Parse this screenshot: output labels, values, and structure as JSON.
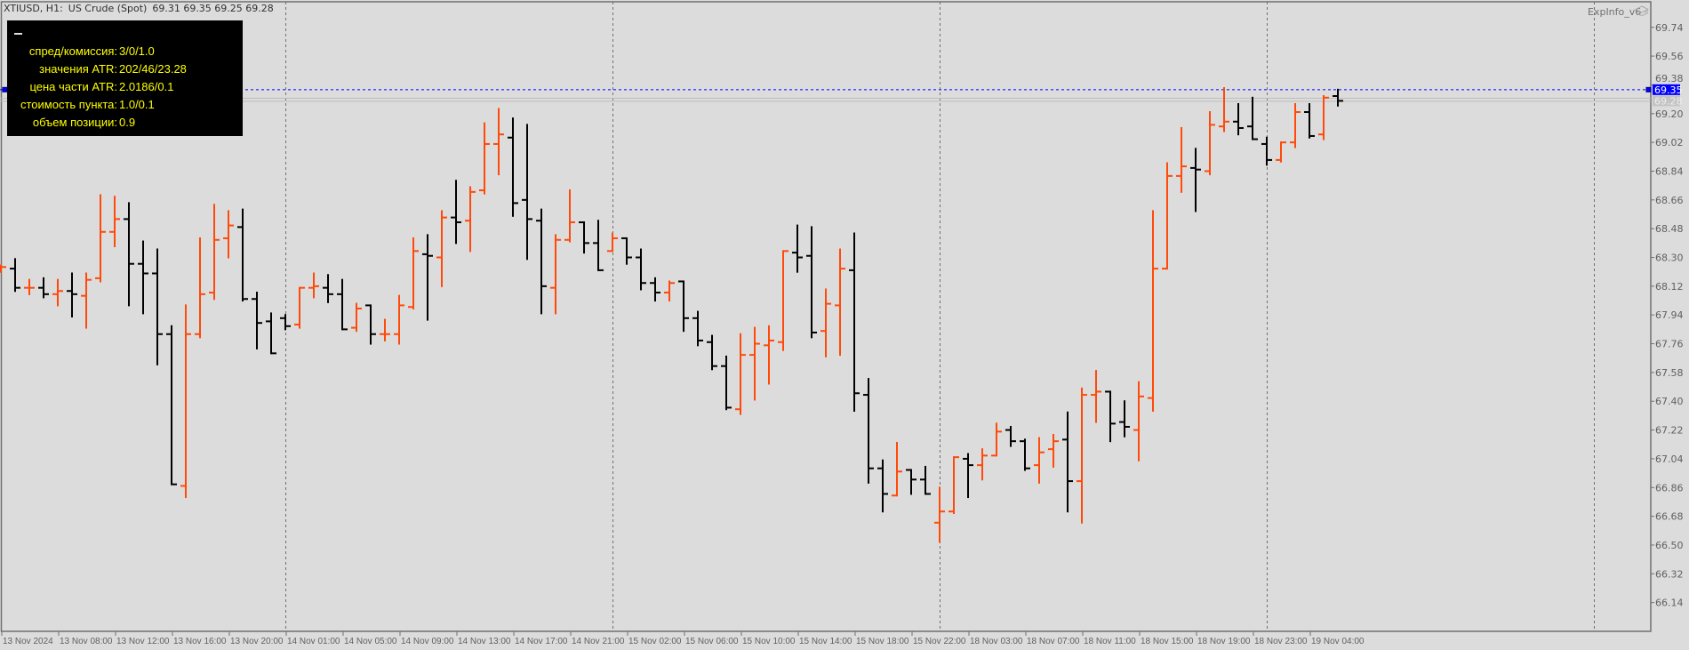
{
  "header": {
    "symbol": "XTIUSD, H1:",
    "description": "US Crude (Spot)",
    "ohlc": "69.31 69.35 69.25 69.28"
  },
  "info_panel": {
    "rows": [
      {
        "label": "спред/комиссия:",
        "value": "3/0/1.0"
      },
      {
        "label": "значения ATR:",
        "value": "202/46/23.28"
      },
      {
        "label": "цена части ATR:",
        "value": "2.0186/0.1"
      },
      {
        "label": "стоимость пункта:",
        "value": "1.0/0.1"
      },
      {
        "label": "объем позиции:",
        "value": "0.9"
      }
    ]
  },
  "expert": {
    "name": "ExpInfo_v6",
    "icon": "graduation-cap-icon"
  },
  "price_labels": {
    "ask": "69.35",
    "bid": "69.28"
  },
  "colors": {
    "background": "#dcdcdc",
    "bar_up": "#ff4a0a",
    "bar_down": "#000000",
    "ask_line": "#0000ff",
    "info_text": "#ffff00"
  },
  "chart_data": {
    "type": "ohlc",
    "timeframe": "H1",
    "ylim": [
      65.96,
      69.9
    ],
    "grid": false,
    "y_ticks": [
      "69.74",
      "69.56",
      "69.38",
      "69.20",
      "69.02",
      "68.84",
      "68.66",
      "68.48",
      "68.30",
      "68.12",
      "67.94",
      "67.76",
      "67.58",
      "67.40",
      "67.22",
      "67.04",
      "66.86",
      "66.68",
      "66.50",
      "66.32",
      "66.14"
    ],
    "x_labels": [
      "13 Nov 2024",
      "13 Nov 08:00",
      "13 Nov 12:00",
      "13 Nov 16:00",
      "13 Nov 20:00",
      "14 Nov 01:00",
      "14 Nov 05:00",
      "14 Nov 09:00",
      "14 Nov 13:00",
      "14 Nov 17:00",
      "14 Nov 21:00",
      "15 Nov 02:00",
      "15 Nov 06:00",
      "15 Nov 10:00",
      "15 Nov 14:00",
      "15 Nov 18:00",
      "15 Nov 22:00",
      "18 Nov 03:00",
      "18 Nov 07:00",
      "18 Nov 11:00",
      "18 Nov 15:00",
      "18 Nov 19:00",
      "18 Nov 23:00",
      "19 Nov 04:00"
    ],
    "bars": [
      [
        68.22,
        68.25,
        68.21,
        68.24
      ],
      [
        68.23,
        68.29,
        68.09,
        68.11
      ],
      [
        68.11,
        68.16,
        68.07,
        68.11
      ],
      [
        68.11,
        68.17,
        68.05,
        68.07
      ],
      [
        68.07,
        68.16,
        68.0,
        68.09
      ],
      [
        68.09,
        68.2,
        67.93,
        68.07
      ],
      [
        68.06,
        68.2,
        67.86,
        68.16
      ],
      [
        68.17,
        68.69,
        68.15,
        68.46
      ],
      [
        68.46,
        68.68,
        68.37,
        68.54
      ],
      [
        68.54,
        68.64,
        68.0,
        68.26
      ],
      [
        68.26,
        68.4,
        67.95,
        68.2
      ],
      [
        68.2,
        68.35,
        67.63,
        67.82
      ],
      [
        67.82,
        67.87,
        66.88,
        66.88
      ],
      [
        66.87,
        68.0,
        66.8,
        67.82
      ],
      [
        67.82,
        68.42,
        67.8,
        68.07
      ],
      [
        68.08,
        68.63,
        68.04,
        68.41
      ],
      [
        68.42,
        68.59,
        68.3,
        68.5
      ],
      [
        68.49,
        68.6,
        68.03,
        68.04
      ],
      [
        68.04,
        68.08,
        67.73,
        67.89
      ],
      [
        67.9,
        67.95,
        67.7,
        67.7
      ],
      [
        67.92,
        67.94,
        67.85,
        67.87
      ],
      [
        67.88,
        68.11,
        67.86,
        68.11
      ],
      [
        68.11,
        68.2,
        68.05,
        68.12
      ],
      [
        68.11,
        68.19,
        68.02,
        68.07
      ],
      [
        68.07,
        68.16,
        67.85,
        67.85
      ],
      [
        67.86,
        68.01,
        67.84,
        67.98
      ],
      [
        68.0,
        68.0,
        67.76,
        67.82
      ],
      [
        67.82,
        67.91,
        67.78,
        67.82
      ],
      [
        67.82,
        68.06,
        67.76,
        68.0
      ],
      [
        67.99,
        68.42,
        67.98,
        68.34
      ],
      [
        68.32,
        68.44,
        67.91,
        68.31
      ],
      [
        68.3,
        68.59,
        68.12,
        68.55
      ],
      [
        68.55,
        68.78,
        68.39,
        68.52
      ],
      [
        68.53,
        68.74,
        68.34,
        68.71
      ],
      [
        68.72,
        69.14,
        68.7,
        69.01
      ],
      [
        69.01,
        69.23,
        68.82,
        69.07
      ],
      [
        69.05,
        69.17,
        68.56,
        68.64
      ],
      [
        68.66,
        69.13,
        68.29,
        68.54
      ],
      [
        68.53,
        68.6,
        67.95,
        68.12
      ],
      [
        68.11,
        68.44,
        67.95,
        68.41
      ],
      [
        68.41,
        68.72,
        68.4,
        68.52
      ],
      [
        68.52,
        68.52,
        68.33,
        68.39
      ],
      [
        68.39,
        68.53,
        68.22,
        68.22
      ],
      [
        68.34,
        68.45,
        68.34,
        68.42
      ],
      [
        68.42,
        68.42,
        68.26,
        68.3
      ],
      [
        68.3,
        68.35,
        68.1,
        68.14
      ],
      [
        68.14,
        68.17,
        68.03,
        68.08
      ],
      [
        68.08,
        68.15,
        68.03,
        68.14
      ],
      [
        68.15,
        68.15,
        67.84,
        67.92
      ],
      [
        67.92,
        67.96,
        67.75,
        67.78
      ],
      [
        67.77,
        67.81,
        67.6,
        67.62
      ],
      [
        67.62,
        67.68,
        67.35,
        67.36
      ],
      [
        67.35,
        67.82,
        67.32,
        67.69
      ],
      [
        67.69,
        67.86,
        67.41,
        67.76
      ],
      [
        67.75,
        67.87,
        67.51,
        67.78
      ],
      [
        67.77,
        68.34,
        67.72,
        68.34
      ],
      [
        68.33,
        68.5,
        68.21,
        68.3
      ],
      [
        68.31,
        68.49,
        67.8,
        67.83
      ],
      [
        67.84,
        68.1,
        67.68,
        68.01
      ],
      [
        68.0,
        68.35,
        67.69,
        68.23
      ],
      [
        68.22,
        68.45,
        67.34,
        67.45
      ],
      [
        67.44,
        67.54,
        66.89,
        66.98
      ],
      [
        66.98,
        67.03,
        66.71,
        66.82
      ],
      [
        66.81,
        67.14,
        66.81,
        66.96
      ],
      [
        66.97,
        66.97,
        66.82,
        66.91
      ],
      [
        66.91,
        66.99,
        66.82,
        66.82
      ],
      [
        66.64,
        66.86,
        66.52,
        66.71
      ],
      [
        66.71,
        67.05,
        66.7,
        67.05
      ],
      [
        67.04,
        67.07,
        66.8,
        67.0
      ],
      [
        67.0,
        67.1,
        66.91,
        67.06
      ],
      [
        67.06,
        67.26,
        67.06,
        67.21
      ],
      [
        67.22,
        67.24,
        67.12,
        67.15
      ],
      [
        67.15,
        67.16,
        66.97,
        66.98
      ],
      [
        67.0,
        67.17,
        66.89,
        67.08
      ],
      [
        67.1,
        67.19,
        66.99,
        67.15
      ],
      [
        67.16,
        67.33,
        66.71,
        66.9
      ],
      [
        66.9,
        67.48,
        66.64,
        67.44
      ],
      [
        67.44,
        67.59,
        67.27,
        67.46
      ],
      [
        67.46,
        67.46,
        67.15,
        67.26
      ],
      [
        67.27,
        67.4,
        67.18,
        67.24
      ],
      [
        67.22,
        67.52,
        67.03,
        67.43
      ],
      [
        67.42,
        68.59,
        67.34,
        68.23
      ],
      [
        68.23,
        68.89,
        68.23,
        68.81
      ],
      [
        68.81,
        69.11,
        68.71,
        68.87
      ],
      [
        68.86,
        68.98,
        68.59,
        68.85
      ],
      [
        68.84,
        69.21,
        68.82,
        69.13
      ],
      [
        69.12,
        69.36,
        69.09,
        69.15
      ],
      [
        69.15,
        69.26,
        69.07,
        69.11
      ],
      [
        69.12,
        69.3,
        69.04,
        69.04
      ],
      [
        69.01,
        69.05,
        68.88,
        68.91
      ],
      [
        68.91,
        69.02,
        68.9,
        69.02
      ],
      [
        69.02,
        69.26,
        68.99,
        69.21
      ],
      [
        69.21,
        69.26,
        69.05,
        69.06
      ],
      [
        69.07,
        69.31,
        69.04,
        69.3
      ],
      [
        69.31,
        69.35,
        69.25,
        69.28
      ]
    ]
  }
}
